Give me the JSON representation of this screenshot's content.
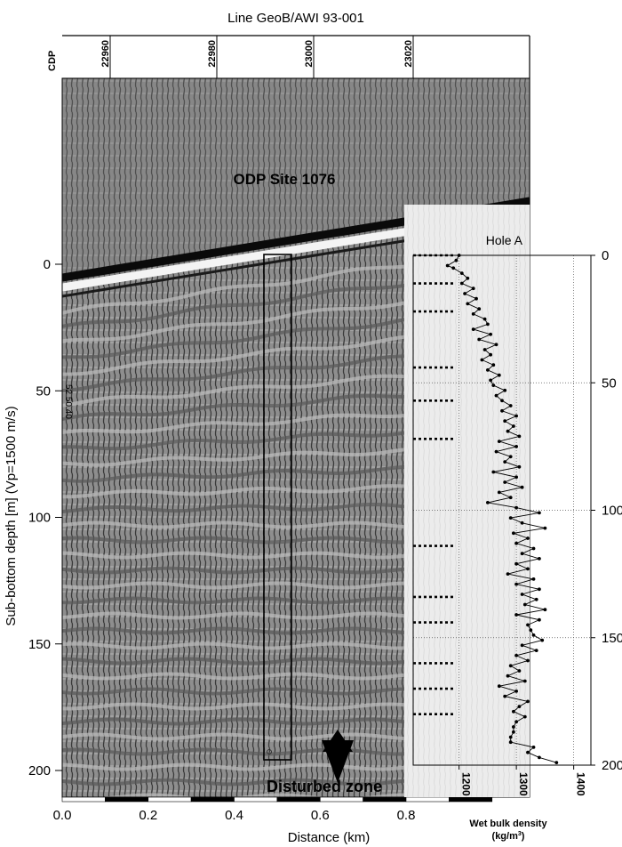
{
  "chart_data": {
    "type": "scatter",
    "title": "Line GeoB/AWI 93-001",
    "seismic": {
      "cdp_label": "CDP",
      "cdp_ticks": [
        "22960",
        "22980",
        "23000",
        "23020"
      ],
      "ylabel": "Sub-bottom depth [m] (Vp=1500 m/s)",
      "yticks": [
        "0",
        "50",
        "100",
        "150",
        "200"
      ],
      "xlabel": "Distance (km)",
      "xticks": [
        "0.0",
        "0.2",
        "0.4",
        "0.6",
        "0.8"
      ],
      "site_label": "ODP Site 1076",
      "disturbed_label": "Disturbed zone",
      "side_annotation": "52  50  40"
    },
    "density_log": {
      "title": "Hole A",
      "xlabel_line1": "Wet bulk density",
      "xlabel_line2": "(kg/m",
      "xlabel_sup": "3",
      "xlabel_close": ")",
      "xticks": [
        "1200",
        "1300",
        "1400"
      ],
      "xlim": [
        1120,
        1430
      ],
      "yticks": [
        "0",
        "50",
        "100",
        "150",
        "200"
      ],
      "ylim": [
        0,
        200
      ],
      "marker_depths": [
        0,
        11,
        22,
        44,
        57,
        72,
        114,
        134,
        144,
        160,
        170,
        180
      ],
      "series": [
        {
          "depth": [
            0,
            2,
            4,
            5,
            7,
            9,
            11,
            13,
            15,
            17,
            19,
            21,
            23,
            25,
            27,
            29,
            31,
            33,
            35,
            37,
            39,
            41,
            43,
            45,
            47,
            49,
            51,
            53,
            55,
            57,
            59,
            61,
            63,
            65,
            67,
            69,
            71,
            73,
            75,
            77,
            79,
            81,
            83,
            85,
            87,
            89,
            91,
            93,
            95,
            97,
            99,
            101,
            103,
            105,
            107,
            109,
            111,
            113,
            115,
            117,
            119,
            121,
            123,
            125,
            127,
            129,
            131,
            133,
            135,
            137,
            139,
            141,
            143,
            145,
            147,
            149,
            151,
            153,
            155,
            157,
            159,
            161,
            163,
            165,
            167,
            169,
            171,
            173,
            175,
            177,
            179,
            181,
            183,
            185,
            187,
            189,
            191,
            193,
            195,
            197,
            199
          ],
          "density": [
            1200,
            1195,
            1180,
            1190,
            1205,
            1215,
            1205,
            1225,
            1210,
            1230,
            1215,
            1235,
            1225,
            1245,
            1250,
            1225,
            1255,
            1235,
            1265,
            1245,
            1255,
            1240,
            1260,
            1250,
            1270,
            1255,
            1260,
            1280,
            1265,
            1275,
            1290,
            1275,
            1300,
            1280,
            1295,
            1285,
            1305,
            1270,
            1300,
            1265,
            1290,
            1280,
            1305,
            1260,
            1300,
            1280,
            1310,
            1270,
            1290,
            1250,
            1300,
            1340,
            1290,
            1310,
            1350,
            1295,
            1320,
            1300,
            1330,
            1310,
            1340,
            1300,
            1320,
            1285,
            1330,
            1300,
            1340,
            1310,
            1335,
            1315,
            1350,
            1300,
            1340,
            1320,
            1325,
            1330,
            1345,
            1310,
            1335,
            1300,
            1320,
            1290,
            1305,
            1285,
            1315,
            1270,
            1300,
            1280,
            1320,
            1305,
            1295,
            1315,
            1300,
            1295,
            1295,
            1290,
            1290,
            1330,
            1320,
            1340,
            1370
          ]
        }
      ]
    }
  }
}
